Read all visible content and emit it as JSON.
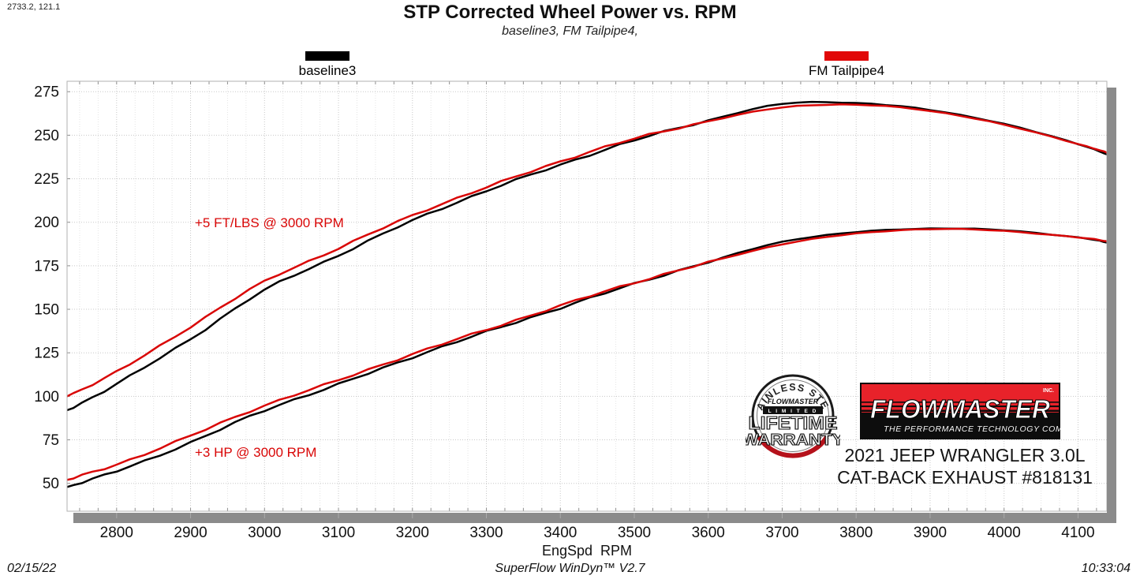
{
  "readout": "2733.2, 121.1",
  "title": "STP Corrected Wheel Power vs. RPM",
  "subtitle": "baseline3, FM Tailpipe4,",
  "legend": [
    {
      "label": "baseline3",
      "color": "#000000"
    },
    {
      "label": "FM Tailpipe4",
      "color": "#e10808"
    }
  ],
  "annotations": [
    {
      "text": "+5 FT/LBS @ 3000 RPM",
      "color": "#d90606"
    },
    {
      "text": "+3 HP @ 3000 RPM",
      "color": "#d90606"
    }
  ],
  "branding": {
    "badge": {
      "arc_text": "STAINLESS STEEL",
      "script": "FLOWMASTER",
      "limited": "L I M I T E D",
      "line1": "LIFETIME",
      "line2": "WARRANTY",
      "red": "#b5121b"
    },
    "logo": {
      "name": "FLOWMASTER",
      "inc": "INC.",
      "tagline": "THE PERFORMANCE TECHNOLOGY COMPANY",
      "red": "#e8222a"
    },
    "vehicle_line1": "2021 JEEP WRANGLER 3.0L",
    "vehicle_line2": "CAT-BACK EXHAUST #818131"
  },
  "footer": {
    "date": "02/15/22",
    "app": "SuperFlow WinDyn™ V2.7",
    "time": "10:33:04"
  },
  "chart_data": {
    "type": "line",
    "title": "STP Corrected Wheel Power vs. RPM",
    "subtitle": "baseline3, FM Tailpipe4,",
    "xlabel": "EngSpd  RPM",
    "ylabel": "",
    "x": [
      2733,
      2800,
      2900,
      3000,
      3100,
      3200,
      3300,
      3400,
      3500,
      3600,
      3700,
      3800,
      3900,
      4000,
      4100,
      4139
    ],
    "series": [
      {
        "name": "baseline3 torque",
        "units": "FT/LBS",
        "color": "#000000",
        "values": [
          92,
          107,
          133,
          161,
          181,
          201,
          218,
          233,
          247,
          258.5,
          268,
          268.5,
          264.5,
          256.5,
          245,
          239
        ]
      },
      {
        "name": "FM Tailpipe4 torque",
        "units": "FT/LBS",
        "color": "#d90606",
        "values": [
          100,
          114,
          140,
          166,
          185,
          204,
          220,
          235,
          248,
          258,
          266,
          267.5,
          264,
          256,
          245,
          240
        ]
      },
      {
        "name": "baseline3 power",
        "units": "HP",
        "color": "#000000",
        "values": [
          47.9,
          57.0,
          73.4,
          92.0,
          106.8,
          122.5,
          137.0,
          150.8,
          164.6,
          177.2,
          188.8,
          194.3,
          196.4,
          195.4,
          191.3,
          188.3
        ]
      },
      {
        "name": "FM Tailpipe4 power",
        "units": "HP",
        "color": "#d90606",
        "values": [
          52.0,
          60.8,
          77.3,
          94.8,
          109.2,
          124.3,
          138.2,
          152.1,
          165.3,
          176.9,
          187.4,
          193.5,
          196.1,
          195.0,
          191.3,
          189.1
        ]
      }
    ],
    "xlim": [
      2733,
      4139
    ],
    "ylim": [
      34,
      281
    ],
    "xticks": [
      2800,
      2900,
      3000,
      3100,
      3200,
      3300,
      3400,
      3500,
      3600,
      3700,
      3800,
      3900,
      4000,
      4100
    ],
    "yticks": [
      50,
      75,
      100,
      125,
      150,
      175,
      200,
      225,
      250,
      275
    ],
    "minor_x_step": 25,
    "grid": true,
    "legend_position": "top"
  }
}
